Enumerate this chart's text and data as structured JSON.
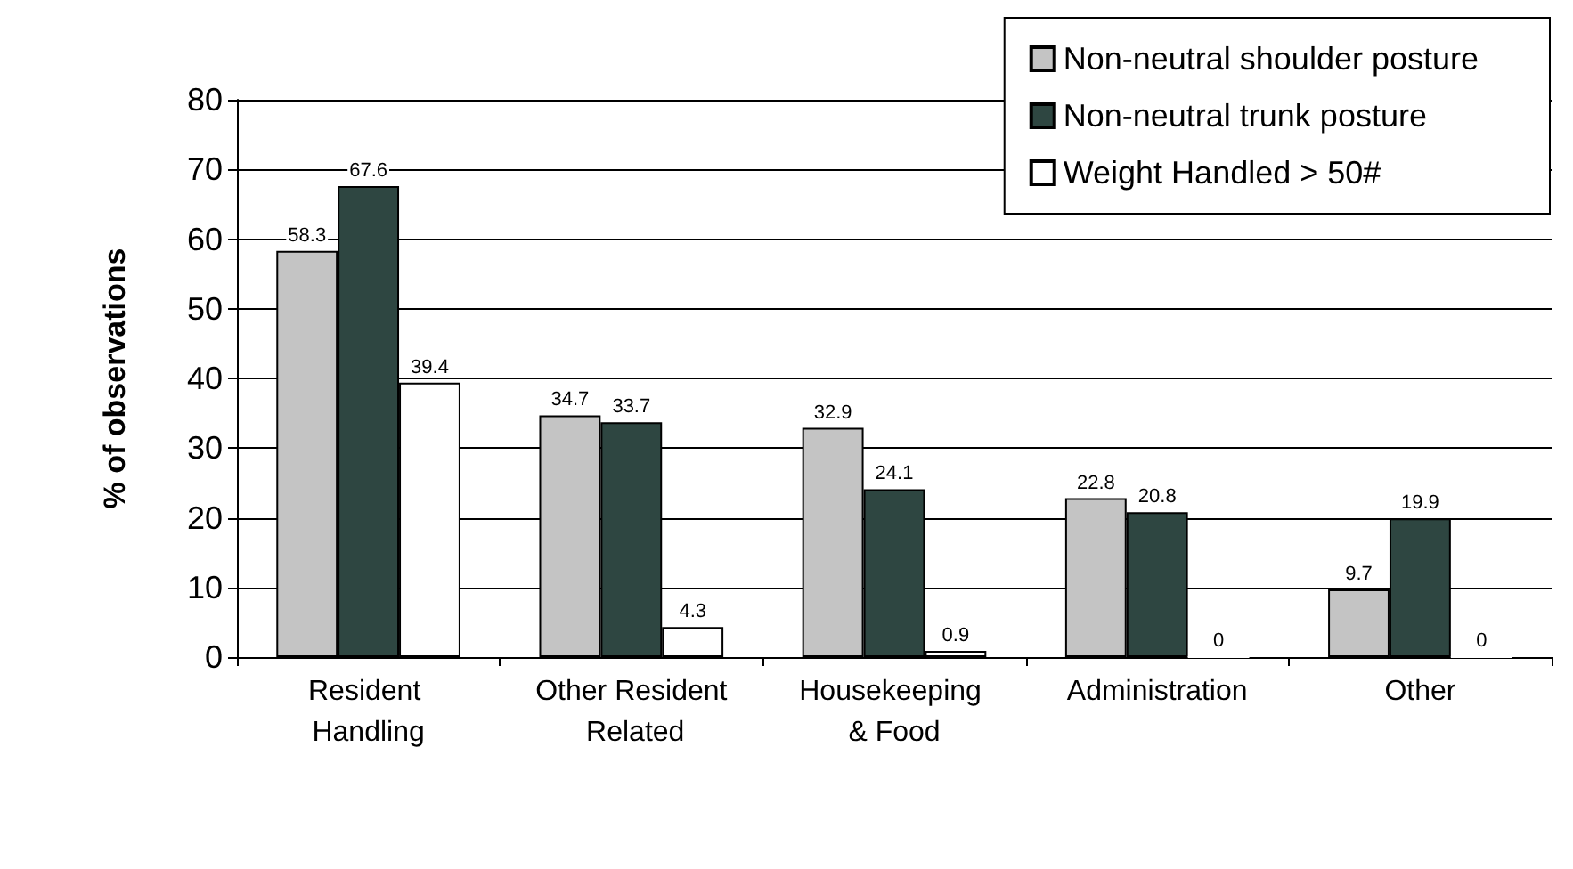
{
  "chart_data": {
    "type": "bar",
    "ylabel": "% of observations",
    "categories": [
      "Resident Handling",
      "Other Resident Related",
      "Housekeeping & Food",
      "Administration",
      "Other"
    ],
    "series": [
      {
        "name": "Non-neutral shoulder posture",
        "color": "#c4c4c4",
        "values": [
          58.3,
          34.7,
          32.9,
          22.8,
          9.7
        ]
      },
      {
        "name": "Non-neutral trunk posture",
        "color": "#2e4641",
        "values": [
          67.6,
          33.7,
          24.1,
          20.8,
          19.9
        ]
      },
      {
        "name": "Weight Handled > 50#",
        "color": "#ffffff",
        "values": [
          39.4,
          4.3,
          0.9,
          0,
          0
        ]
      }
    ],
    "ylim": [
      0,
      80
    ],
    "yticks": [
      0,
      10,
      20,
      30,
      40,
      50,
      60,
      70,
      80
    ],
    "grid": "y",
    "legend": "top right",
    "data_labels": true
  }
}
